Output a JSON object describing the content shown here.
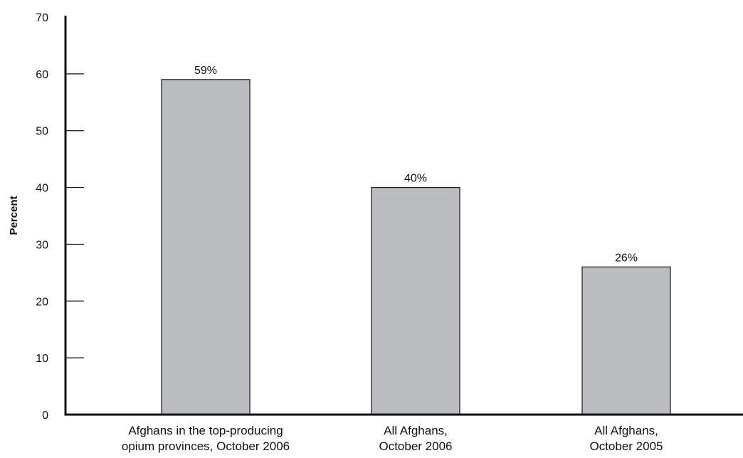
{
  "chart_data": {
    "type": "bar",
    "title": "",
    "xlabel": "",
    "ylabel": "Percent",
    "ylim": [
      0,
      70
    ],
    "yticks": [
      0,
      10,
      20,
      30,
      40,
      50,
      60,
      70
    ],
    "grid": false,
    "categories": [
      [
        "Afghans in the top-producing",
        "opium provinces, October 2006"
      ],
      [
        "All Afghans,",
        "October 2006"
      ],
      [
        "All Afghans,",
        "October 2005"
      ]
    ],
    "values": [
      59,
      40,
      26
    ],
    "value_labels": [
      "59%",
      "40%",
      "26%"
    ],
    "colors": {
      "bar_fill": "#bbbcbf",
      "bar_stroke": "#222222",
      "axis": "#111111"
    }
  }
}
